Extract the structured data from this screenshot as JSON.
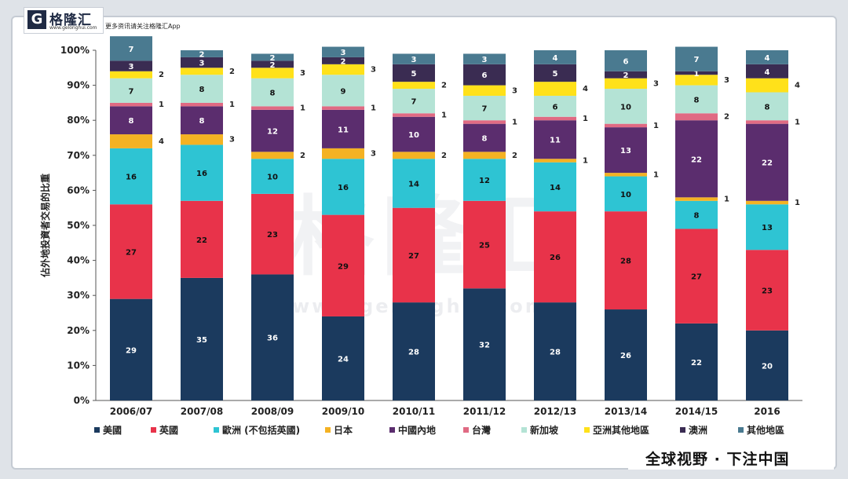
{
  "header": {
    "logo_mark": "G",
    "logo_name": "格隆汇",
    "logo_url": "www.gelonghui.com",
    "tagline": "更多资讯请关注格隆汇App"
  },
  "watermark": {
    "text": "格隆汇",
    "url": "www.gelonghui.com"
  },
  "footer": {
    "slogan": "全球视野 · 下注中国"
  },
  "colors": {
    "美國": "#1b3a5e",
    "英國": "#e8334a",
    "歐洲": "#2ec4d3",
    "日本": "#f4b223",
    "中國內地": "#5b2d6e",
    "台灣": "#e06a83",
    "新加坡": "#b4e3d5",
    "亞洲其他地區": "#ffe11a",
    "澳洲": "#3a2c52",
    "其他地區": "#4a7a90"
  },
  "chart_data": {
    "type": "bar",
    "stacked": true,
    "ylabel": "佔外地投資者交易的比重",
    "ylim": [
      0,
      100
    ],
    "yticks": [
      "0%",
      "10%",
      "20%",
      "30%",
      "40%",
      "50%",
      "60%",
      "70%",
      "80%",
      "90%",
      "100%"
    ],
    "categories": [
      "2006/07",
      "2007/08",
      "2008/09",
      "2009/10",
      "2010/11",
      "2011/12",
      "2012/13",
      "2013/14",
      "2014/15",
      "2016"
    ],
    "series": [
      {
        "name": "美國",
        "values": [
          29,
          35,
          36,
          24,
          28,
          32,
          28,
          26,
          22,
          20
        ]
      },
      {
        "name": "英國",
        "values": [
          27,
          22,
          23,
          29,
          27,
          25,
          26,
          28,
          27,
          23
        ]
      },
      {
        "name": "歐洲 (不包括英國)",
        "values": [
          16,
          16,
          10,
          16,
          14,
          12,
          14,
          10,
          8,
          13
        ]
      },
      {
        "name": "日本",
        "values": [
          4,
          3,
          2,
          3,
          2,
          2,
          1,
          1,
          1,
          1
        ]
      },
      {
        "name": "中國內地",
        "values": [
          8,
          8,
          12,
          11,
          10,
          8,
          11,
          13,
          22,
          22
        ]
      },
      {
        "name": "台灣",
        "values": [
          1,
          1,
          1,
          1,
          1,
          1,
          1,
          1,
          2,
          1
        ]
      },
      {
        "name": "新加坡",
        "values": [
          7,
          8,
          8,
          9,
          7,
          7,
          6,
          10,
          8,
          8
        ]
      },
      {
        "name": "亞洲其他地區",
        "values": [
          2,
          2,
          3,
          3,
          2,
          3,
          4,
          3,
          3,
          4
        ]
      },
      {
        "name": "澳洲",
        "values": [
          3,
          3,
          2,
          2,
          5,
          6,
          5,
          2,
          1,
          4
        ]
      },
      {
        "name": "其他地區",
        "values": [
          7,
          2,
          2,
          3,
          3,
          3,
          4,
          6,
          7,
          4
        ]
      }
    ],
    "label_colors": [
      "#ffffff",
      "#111111",
      "#111111",
      "#111111",
      "#ffffff",
      "#111111",
      "#111111",
      "#111111",
      "#ffffff",
      "#ffffff"
    ],
    "outside_labels": [
      {
        "category": "2006/07",
        "series": "亞洲其他地區",
        "value": 2
      },
      {
        "category": "2006/07",
        "series": "台灣",
        "value": 1
      },
      {
        "category": "2006/07",
        "series": "日本",
        "value": 4
      },
      {
        "category": "2007/08",
        "series": "亞洲其他地區",
        "value": 2
      },
      {
        "category": "2007/08",
        "series": "台灣",
        "value": 1
      },
      {
        "category": "2007/08",
        "series": "日本",
        "value": 3
      },
      {
        "category": "2008/09",
        "series": "亞洲其他地區",
        "value": 3
      },
      {
        "category": "2008/09",
        "series": "台灣",
        "value": 1
      },
      {
        "category": "2008/09",
        "series": "日本",
        "value": 2
      },
      {
        "category": "2009/10",
        "series": "亞洲其他地區",
        "value": 3
      },
      {
        "category": "2009/10",
        "series": "台灣",
        "value": 1
      },
      {
        "category": "2009/10",
        "series": "日本",
        "value": 3
      },
      {
        "category": "2010/11",
        "series": "亞洲其他地區",
        "value": 2
      },
      {
        "category": "2010/11",
        "series": "台灣",
        "value": 1
      },
      {
        "category": "2010/11",
        "series": "日本",
        "value": 2
      },
      {
        "category": "2011/12",
        "series": "亞洲其他地區",
        "value": 3
      },
      {
        "category": "2011/12",
        "series": "台灣",
        "value": 1
      },
      {
        "category": "2011/12",
        "series": "日本",
        "value": 2
      },
      {
        "category": "2012/13",
        "series": "亞洲其他地區",
        "value": 4
      },
      {
        "category": "2012/13",
        "series": "台灣",
        "value": 1
      },
      {
        "category": "2012/13",
        "series": "日本",
        "value": 1
      },
      {
        "category": "2013/14",
        "series": "亞洲其他地區",
        "value": 3
      },
      {
        "category": "2013/14",
        "series": "台灣",
        "value": 1
      },
      {
        "category": "2013/14",
        "series": "日本",
        "value": 1
      },
      {
        "category": "2014/15",
        "series": "亞洲其他地區",
        "value": 3
      },
      {
        "category": "2014/15",
        "series": "台灣",
        "value": 2
      },
      {
        "category": "2014/15",
        "series": "日本",
        "value": 1
      },
      {
        "category": "2016",
        "series": "亞洲其他地區",
        "value": 4
      },
      {
        "category": "2016",
        "series": "台灣",
        "value": 1
      },
      {
        "category": "2016",
        "series": "日本",
        "value": 1
      }
    ],
    "legend": [
      "美國",
      "英國",
      "歐洲 (不包括英國)",
      "日本",
      "中國內地",
      "台灣",
      "新加坡",
      "亞洲其他地區",
      "澳洲",
      "其他地區"
    ],
    "legend_position": "bottom"
  }
}
